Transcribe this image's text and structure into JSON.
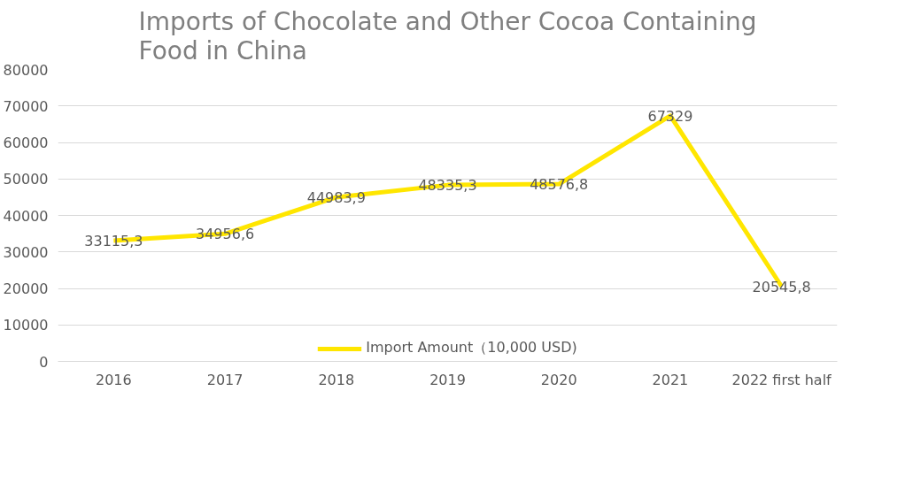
{
  "chart_data": {
    "type": "line",
    "title": "Imports of Chocolate and Other Cocoa Containing Food in China",
    "categories": [
      "2016",
      "2017",
      "2018",
      "2019",
      "2020",
      "2021",
      "2022 first half"
    ],
    "series": [
      {
        "name": "Import Amount（10,000 USD)",
        "color": "#ffe600",
        "values": [
          33115.3,
          34956.6,
          44983.9,
          48335.3,
          48576.8,
          67329,
          20545.8
        ],
        "value_labels": [
          "33115,3",
          "34956,6",
          "44983,9",
          "48335,3",
          "48576,8",
          "67329",
          "20545,8"
        ]
      }
    ],
    "ylim": [
      0,
      80000
    ],
    "yticks": [
      0,
      10000,
      20000,
      30000,
      40000,
      50000,
      60000,
      70000,
      80000
    ],
    "grid": "y",
    "legend": "bottom",
    "marker": "none",
    "line_style": "solid"
  }
}
